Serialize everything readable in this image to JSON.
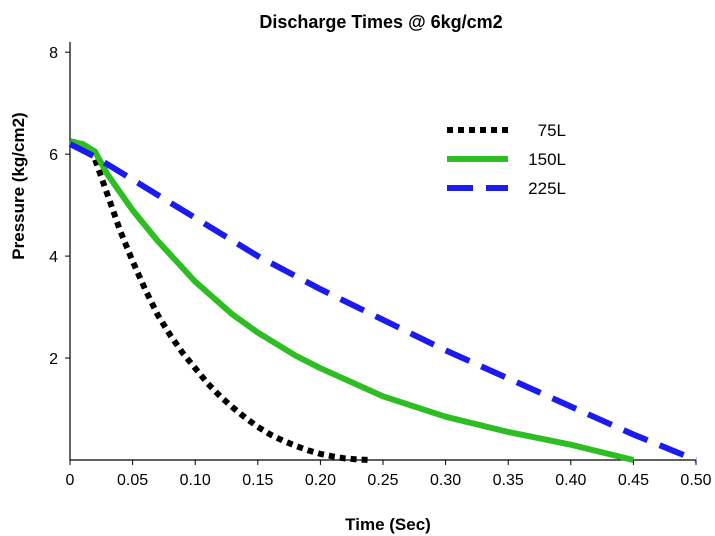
{
  "chart_data": {
    "type": "line",
    "title": "Discharge Times @ 6kg/cm2",
    "xlabel": "Time (Sec)",
    "ylabel": "Pressure (kg/cm2)",
    "xlim": [
      0,
      0.5
    ],
    "ylim": [
      0,
      8.2
    ],
    "xticks": [
      "0",
      "0.05",
      "0.10",
      "0.15",
      "0.20",
      "0.25",
      "0.30",
      "0.35",
      "0.40",
      "0.45",
      "0.50"
    ],
    "yticks": [
      "2",
      "4",
      "6",
      "8"
    ],
    "grid": false,
    "legend_position": "top-right",
    "series": [
      {
        "name": "75L",
        "color": "#000000",
        "style": "dotted",
        "x": [
          0,
          0.01,
          0.02,
          0.03,
          0.04,
          0.05,
          0.06,
          0.07,
          0.08,
          0.09,
          0.1,
          0.11,
          0.12,
          0.13,
          0.14,
          0.15,
          0.16,
          0.17,
          0.18,
          0.19,
          0.2,
          0.21,
          0.22,
          0.23,
          0.24
        ],
        "y": [
          6.25,
          6.2,
          5.9,
          5.2,
          4.5,
          3.9,
          3.35,
          2.85,
          2.45,
          2.1,
          1.8,
          1.5,
          1.25,
          1.03,
          0.83,
          0.65,
          0.5,
          0.38,
          0.28,
          0.19,
          0.12,
          0.07,
          0.03,
          0.01,
          0.0
        ]
      },
      {
        "name": "150L",
        "color": "#2ebd23",
        "style": "solid",
        "x": [
          0,
          0.01,
          0.02,
          0.03,
          0.05,
          0.07,
          0.1,
          0.13,
          0.15,
          0.18,
          0.2,
          0.25,
          0.3,
          0.35,
          0.4,
          0.45
        ],
        "y": [
          6.25,
          6.2,
          6.05,
          5.6,
          4.9,
          4.3,
          3.5,
          2.85,
          2.5,
          2.05,
          1.8,
          1.25,
          0.85,
          0.55,
          0.3,
          0.0
        ]
      },
      {
        "name": "225L",
        "color": "#1b1bf0",
        "style": "dashed",
        "x": [
          0,
          0.02,
          0.05,
          0.1,
          0.15,
          0.2,
          0.25,
          0.3,
          0.35,
          0.4,
          0.45,
          0.5
        ],
        "y": [
          6.2,
          5.95,
          5.5,
          4.75,
          4.0,
          3.35,
          2.75,
          2.15,
          1.6,
          1.05,
          0.5,
          0.0
        ]
      }
    ]
  }
}
